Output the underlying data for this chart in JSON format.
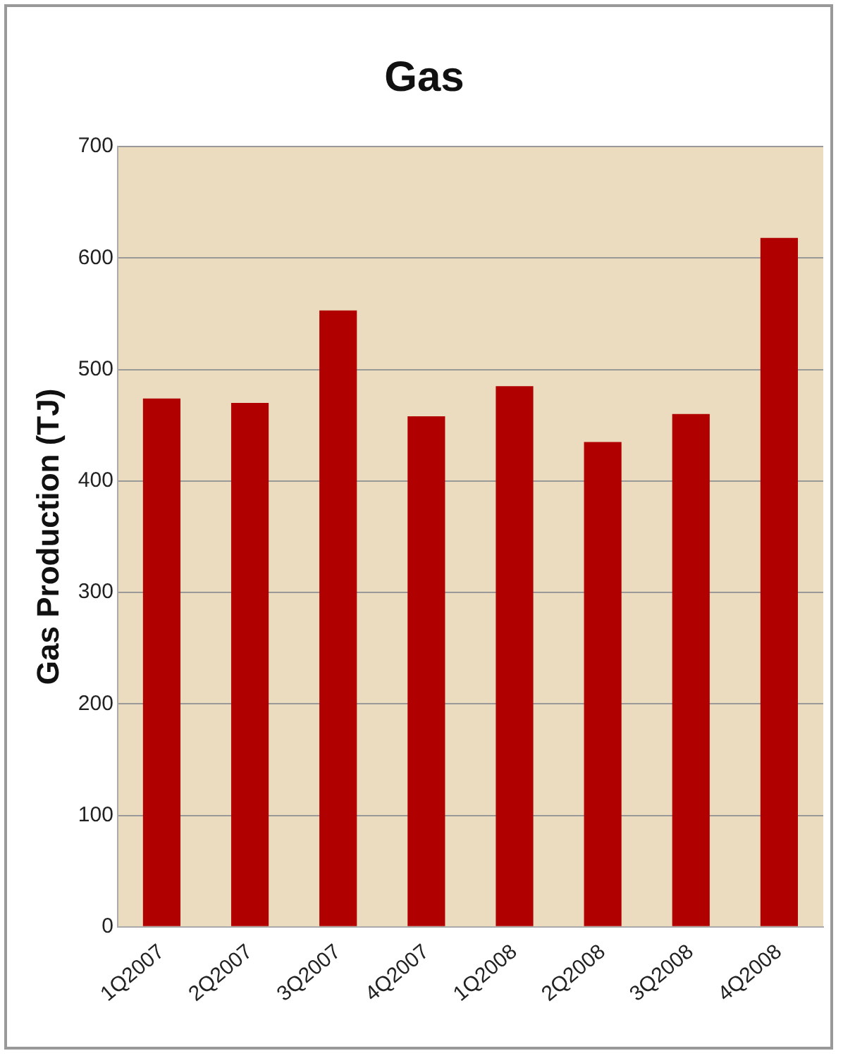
{
  "chart_data": {
    "type": "bar",
    "title": "Gas",
    "ylabel": "Gas Production (TJ)",
    "categories": [
      "1Q2007",
      "2Q2007",
      "3Q2007",
      "4Q2007",
      "1Q2008",
      "2Q2008",
      "3Q2008",
      "4Q2008"
    ],
    "values": [
      474,
      470,
      553,
      458,
      485,
      435,
      460,
      618
    ],
    "color": "#b00000",
    "ylim": [
      0,
      700
    ],
    "yticks": [
      0,
      100,
      200,
      300,
      400,
      500,
      600,
      700
    ],
    "grid": "y",
    "legend": false
  }
}
